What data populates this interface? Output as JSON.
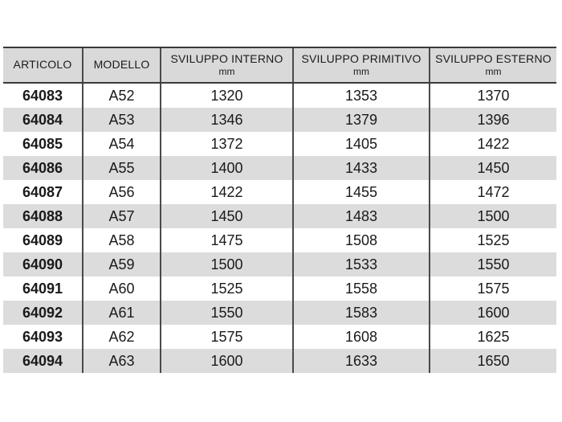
{
  "colors": {
    "header_bg": "#d9d9d9",
    "row_bg": "#ffffff",
    "row_alt_bg": "#dcdcdc",
    "border_horizontal": "#3a3a3a",
    "border_vertical": "#4a4a4a",
    "text": "#1a1a1a"
  },
  "table": {
    "columns": [
      {
        "label": "ARTICOLO",
        "unit": ""
      },
      {
        "label": "MODELLO",
        "unit": ""
      },
      {
        "label": "SVILUPPO INTERNO",
        "unit": "mm"
      },
      {
        "label": "SVILUPPO PRIMITIVO",
        "unit": "mm"
      },
      {
        "label": "SVILUPPO ESTERNO",
        "unit": "mm"
      }
    ],
    "rows": [
      {
        "articolo": "64083",
        "modello": "A52",
        "interno": "1320",
        "primitivo": "1353",
        "esterno": "1370"
      },
      {
        "articolo": "64084",
        "modello": "A53",
        "interno": "1346",
        "primitivo": "1379",
        "esterno": "1396"
      },
      {
        "articolo": "64085",
        "modello": "A54",
        "interno": "1372",
        "primitivo": "1405",
        "esterno": "1422"
      },
      {
        "articolo": "64086",
        "modello": "A55",
        "interno": "1400",
        "primitivo": "1433",
        "esterno": "1450"
      },
      {
        "articolo": "64087",
        "modello": "A56",
        "interno": "1422",
        "primitivo": "1455",
        "esterno": "1472"
      },
      {
        "articolo": "64088",
        "modello": "A57",
        "interno": "1450",
        "primitivo": "1483",
        "esterno": "1500"
      },
      {
        "articolo": "64089",
        "modello": "A58",
        "interno": "1475",
        "primitivo": "1508",
        "esterno": "1525"
      },
      {
        "articolo": "64090",
        "modello": "A59",
        "interno": "1500",
        "primitivo": "1533",
        "esterno": "1550"
      },
      {
        "articolo": "64091",
        "modello": "A60",
        "interno": "1525",
        "primitivo": "1558",
        "esterno": "1575"
      },
      {
        "articolo": "64092",
        "modello": "A61",
        "interno": "1550",
        "primitivo": "1583",
        "esterno": "1600"
      },
      {
        "articolo": "64093",
        "modello": "A62",
        "interno": "1575",
        "primitivo": "1608",
        "esterno": "1625"
      },
      {
        "articolo": "64094",
        "modello": "A63",
        "interno": "1600",
        "primitivo": "1633",
        "esterno": "1650"
      }
    ]
  }
}
